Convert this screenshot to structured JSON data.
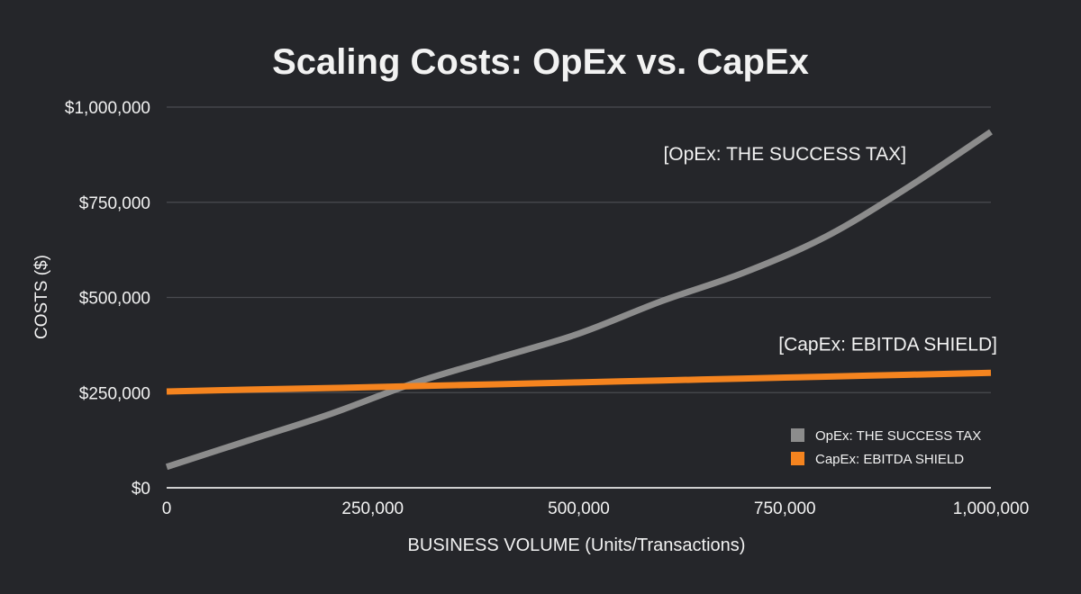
{
  "chart_data": {
    "type": "line",
    "title": "Scaling Costs: OpEx vs. CapEx",
    "xlabel": "BUSINESS VOLUME (Units/Transactions)",
    "ylabel": "COSTS ($)",
    "xlim": [
      0,
      1000000
    ],
    "ylim": [
      0,
      1000000
    ],
    "x_ticks": [
      0,
      250000,
      500000,
      750000,
      1000000
    ],
    "x_tick_labels": [
      "0",
      "250,000",
      "500,000",
      "750,000",
      "1,000,000"
    ],
    "y_ticks": [
      0,
      250000,
      500000,
      750000,
      1000000
    ],
    "y_tick_labels": [
      "$0",
      "$250,000",
      "$500,000",
      "$750,000",
      "$1,000,000"
    ],
    "grid": "horizontal",
    "legend_position": "bottom-right",
    "x": [
      0,
      100000,
      200000,
      300000,
      400000,
      500000,
      600000,
      700000,
      800000,
      900000,
      1000000
    ],
    "series": [
      {
        "name": "OpEx: THE SUCCESS TAX",
        "color": "#8c8c8c",
        "values": [
          55000,
          125000,
          195000,
          275000,
          340000,
          405000,
          490000,
          565000,
          660000,
          790000,
          935000
        ]
      },
      {
        "name": "CapEx: EBITDA SHIELD",
        "color": "#f5841f",
        "values": [
          253000,
          258000,
          262000,
          267000,
          272000,
          277000,
          282000,
          287000,
          292000,
          297000,
          302000
        ]
      }
    ],
    "annotations": [
      {
        "text": "[OpEx: THE SUCCESS TAX]",
        "x": 750000,
        "y": 860000
      },
      {
        "text": "[CapEx: EBITDA SHIELD]",
        "x": 875000,
        "y": 360000
      }
    ]
  }
}
